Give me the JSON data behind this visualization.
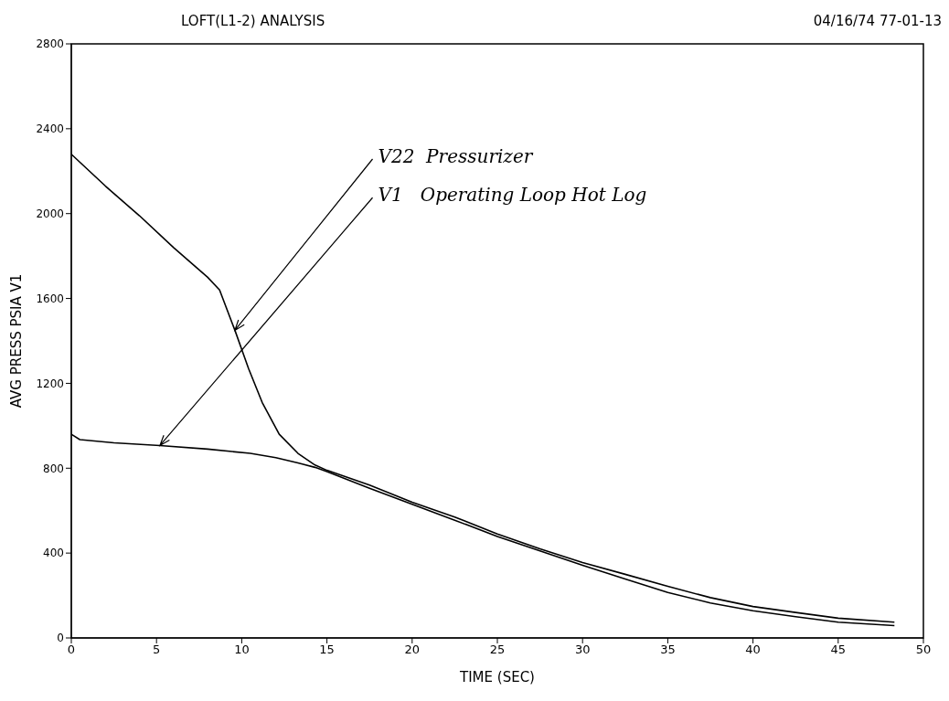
{
  "chart_data": {
    "type": "line",
    "title": "LOFT(L1-2) ANALYSIS",
    "subtitle": "04/16/74 77-01-13",
    "xlabel": "TIME (SEC)",
    "ylabel": "AVG PRESS  PSIA V1",
    "series": [
      {
        "color": "#000000",
        "x": [
          0,
          2,
          4,
          6,
          8,
          8.7,
          9.6,
          10.4,
          11.2,
          12.2,
          13.3,
          14.3,
          15,
          17.5,
          20,
          22.5,
          25,
          27.5,
          30,
          32.5,
          35,
          37.5,
          40,
          42.5,
          45,
          48.3
        ],
        "values": [
          2280,
          2130,
          1990,
          1840,
          1700,
          1640,
          1450,
          1270,
          1110,
          960,
          870,
          815,
          790,
          720,
          640,
          570,
          490,
          420,
          355,
          300,
          243,
          190,
          148,
          120,
          93,
          74
        ]
      },
      {
        "color": "#000000",
        "x": [
          0,
          0.5,
          2.5,
          5.2,
          8,
          10.5,
          12,
          13.3,
          14.3,
          15,
          17.5,
          20,
          22.5,
          25,
          27.5,
          30,
          32.5,
          35,
          37.5,
          40,
          42.5,
          45,
          48.3
        ],
        "values": [
          960,
          935,
          920,
          907,
          890,
          870,
          850,
          825,
          804,
          784,
          705,
          630,
          555,
          478,
          410,
          342,
          278,
          214,
          165,
          128,
          100,
          74,
          58
        ]
      }
    ],
    "annotations": [
      {
        "text": "V22  Pressurizer",
        "x": 9.6,
        "y": 1450
      },
      {
        "text": "V1   Operating Loop Hot Log",
        "x": 5.2,
        "y": 907
      }
    ],
    "xlim": [
      0,
      50
    ],
    "xticks": [
      0,
      5,
      10,
      15,
      20,
      25,
      30,
      35,
      40,
      45,
      50
    ],
    "ylim": [
      0,
      2800
    ],
    "yticks": [
      0,
      400,
      800,
      1200,
      1600,
      2000,
      2400,
      2800
    ],
    "grid": false,
    "marker": "none",
    "line_style": "solid"
  }
}
